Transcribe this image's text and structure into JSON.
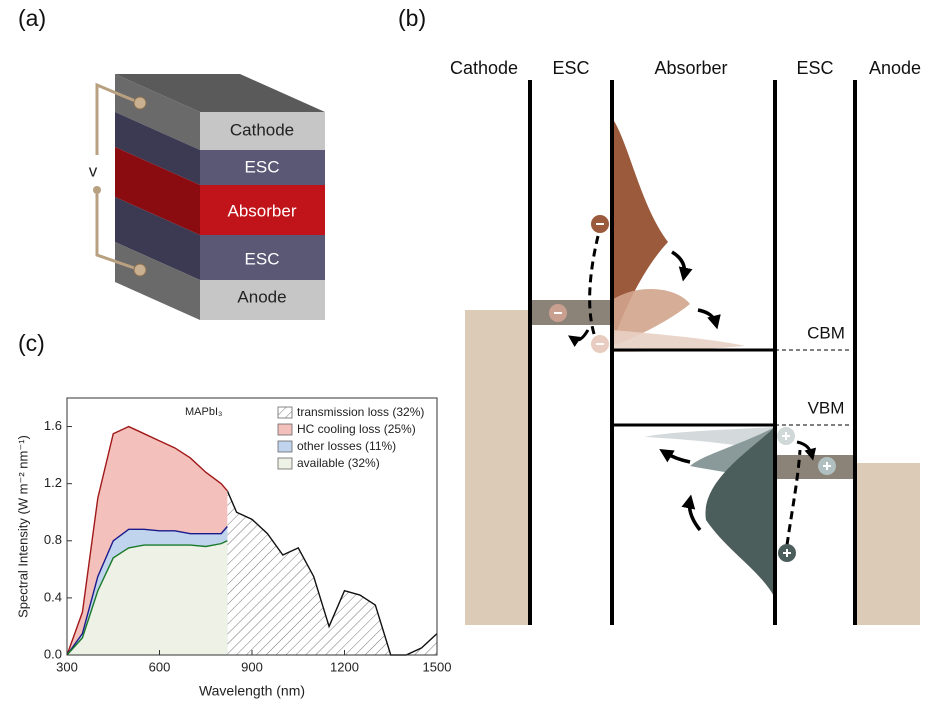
{
  "panels": {
    "a": {
      "label": "(a)",
      "layers": [
        "Cathode",
        "ESC",
        "Absorber",
        "ESC",
        "Anode"
      ],
      "voltage": "v"
    },
    "b": {
      "label": "(b)",
      "columns": [
        "Cathode",
        "ESC",
        "Absorber",
        "ESC",
        "Anode"
      ],
      "levels": [
        "CBM",
        "VBM"
      ]
    },
    "c": {
      "label": "(c)"
    }
  },
  "chart_data": {
    "type": "area",
    "annotation": "MAPbI₃",
    "x_label": "Wavelength (nm)",
    "y_label": "Spectral Intensity (W m⁻² nm⁻¹)",
    "x": [
      300,
      350,
      400,
      450,
      500,
      550,
      600,
      650,
      700,
      750,
      800,
      820,
      850,
      900,
      950,
      1000,
      1050,
      1100,
      1150,
      1200,
      1250,
      1300,
      1350,
      1400,
      1450,
      1500
    ],
    "series": [
      {
        "name": "transmission loss (32%)",
        "color": "#111111",
        "hatch": true,
        "values": [
          null,
          null,
          null,
          null,
          null,
          null,
          null,
          null,
          null,
          null,
          null,
          1.15,
          1.0,
          0.95,
          0.85,
          0.7,
          0.75,
          0.55,
          0.2,
          0.45,
          0.42,
          0.35,
          0.0,
          0.0,
          0.05,
          0.15
        ]
      },
      {
        "name": "HC cooling loss (25%)",
        "color": "#a01818",
        "fill": "#f4c0bc",
        "values": [
          0.0,
          0.3,
          1.1,
          1.55,
          1.6,
          1.55,
          1.5,
          1.45,
          1.38,
          1.28,
          1.2,
          1.15,
          null,
          null,
          null,
          null,
          null,
          null,
          null,
          null,
          null,
          null,
          null,
          null,
          null,
          null
        ]
      },
      {
        "name": "other losses (11%)",
        "color": "#1a1a8c",
        "fill": "#c0d4ee",
        "values": [
          0.0,
          0.15,
          0.55,
          0.8,
          0.88,
          0.88,
          0.87,
          0.87,
          0.85,
          0.85,
          0.85,
          0.9,
          null,
          null,
          null,
          null,
          null,
          null,
          null,
          null,
          null,
          null,
          null,
          null,
          null,
          null
        ]
      },
      {
        "name": "available (32%)",
        "color": "#1a7a2a",
        "fill": "#eef2e6",
        "values": [
          0.0,
          0.12,
          0.45,
          0.68,
          0.75,
          0.77,
          0.77,
          0.77,
          0.77,
          0.76,
          0.78,
          0.8,
          null,
          null,
          null,
          null,
          null,
          null,
          null,
          null,
          null,
          null,
          null,
          null,
          null,
          null
        ]
      }
    ],
    "xlim": [
      300,
      1500
    ],
    "xticks": [
      300,
      600,
      900,
      1200,
      1500
    ],
    "ylim": [
      0,
      1.8
    ],
    "yticks": [
      {
        "value": 0,
        "label": "0.0"
      },
      {
        "value": 0.4,
        "label": "0.4"
      },
      {
        "value": 0.8,
        "label": "0.8"
      },
      {
        "value": 1.2,
        "label": "1.2"
      },
      {
        "value": 1.6,
        "label": "1.6"
      }
    ],
    "legend": "top-right"
  }
}
